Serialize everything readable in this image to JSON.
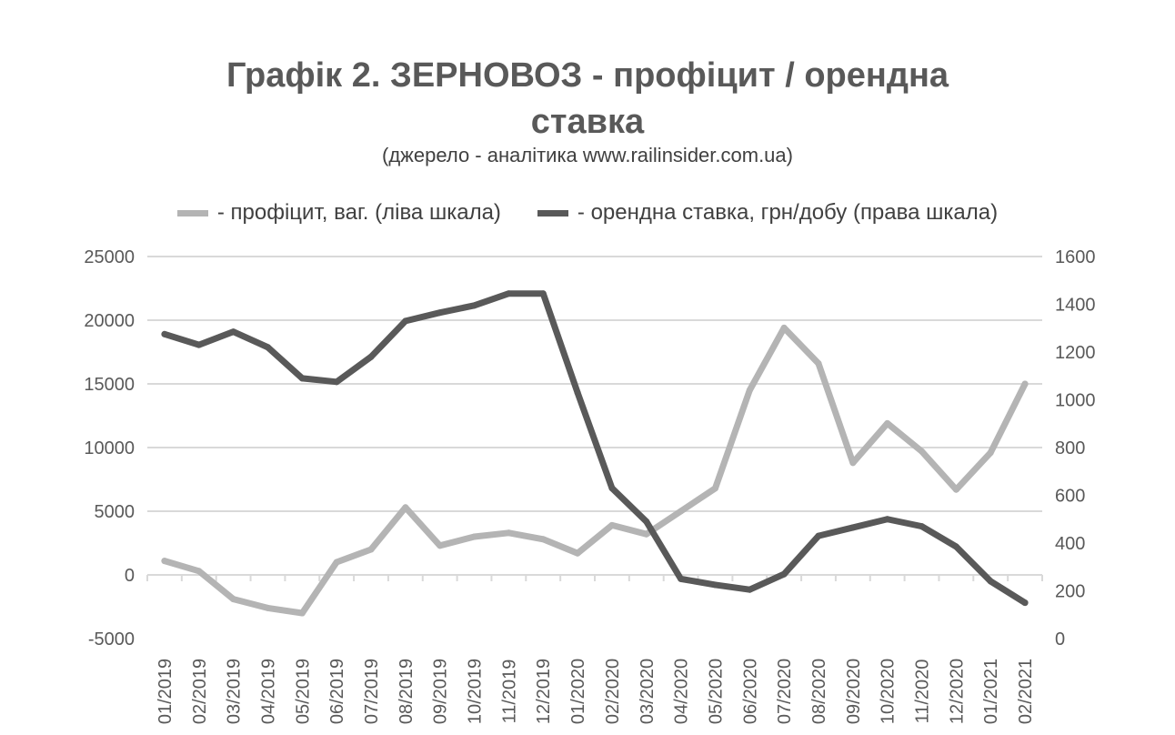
{
  "title_line1": "Графік 2. ЗЕРНОВОЗ - профіцит / орендна",
  "title_line2": "ставка",
  "subtitle": "(джерело - аналітика www.railinsider.com.ua)",
  "colors": {
    "surplus": "#b4b4b4",
    "rate": "#595959",
    "grid": "#d9d9d9"
  },
  "chart_data": {
    "type": "line",
    "categories": [
      "01/2019",
      "02/2019",
      "03/2019",
      "04/2019",
      "05/2019",
      "06/2019",
      "07/2019",
      "08/2019",
      "09/2019",
      "10/2019",
      "11/2019",
      "12/2019",
      "01/2020",
      "02/2020",
      "03/2020",
      "04/2020",
      "05/2020",
      "06/2020",
      "07/2020",
      "08/2020",
      "09/2020",
      "10/2020",
      "11/2020",
      "12/2020",
      "01/2021",
      "02/2021"
    ],
    "series": [
      {
        "name": "- профіцит, ваг. (ліва шкала)",
        "axis": "left",
        "values": [
          1100,
          300,
          -1900,
          -2600,
          -3000,
          1000,
          2000,
          5300,
          2300,
          3000,
          3300,
          2800,
          1700,
          3900,
          3200,
          5000,
          6800,
          14500,
          19400,
          16600,
          8800,
          11900,
          9700,
          6700,
          9600,
          15000
        ]
      },
      {
        "name": "- орендна ставка, грн/добу (права шкала)",
        "axis": "right",
        "values": [
          1275,
          1230,
          1285,
          1220,
          1090,
          1075,
          1180,
          1330,
          1365,
          1395,
          1445,
          1445,
          1030,
          630,
          490,
          250,
          225,
          205,
          270,
          430,
          465,
          500,
          470,
          385,
          240,
          150
        ]
      }
    ],
    "y_left": {
      "min": -5000,
      "max": 25000,
      "ticks": [
        -5000,
        0,
        5000,
        10000,
        15000,
        20000,
        25000
      ]
    },
    "y_right": {
      "min": 0,
      "max": 1600,
      "ticks": [
        0,
        200,
        400,
        600,
        800,
        1000,
        1200,
        1400,
        1600
      ]
    },
    "grid": true,
    "legend_position": "top"
  }
}
